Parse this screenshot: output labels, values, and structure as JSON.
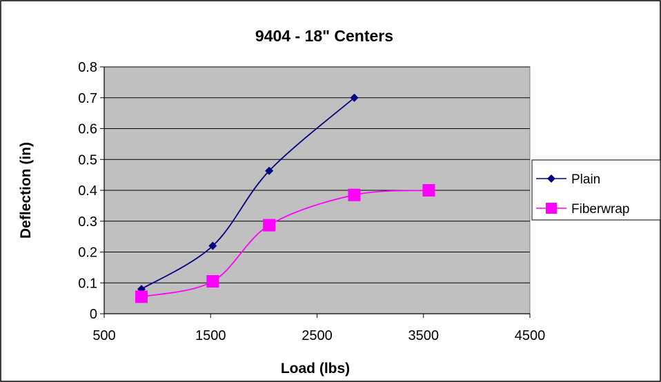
{
  "chart_data": {
    "type": "line",
    "title": "9404 - 18\" Centers",
    "xlabel": "Load (lbs)",
    "ylabel": "Deflection (in)",
    "xlim": [
      500,
      4500
    ],
    "ylim": [
      0,
      0.8
    ],
    "x_ticks": [
      "500",
      "1500",
      "2500",
      "3500",
      "4500"
    ],
    "y_ticks": [
      "0",
      "0.1",
      "0.2",
      "0.3",
      "0.4",
      "0.5",
      "0.6",
      "0.7",
      "0.8"
    ],
    "grid": "horizontal",
    "legend_position": "right",
    "plot_background": "#c0c0c0",
    "series": [
      {
        "name": "Plain",
        "color": "#000080",
        "marker": "diamond",
        "x": [
          850,
          1520,
          2050,
          2850
        ],
        "y": [
          0.08,
          0.22,
          0.463,
          0.7
        ]
      },
      {
        "name": "Fiberwrap",
        "color": "#ff00ff",
        "marker": "square",
        "x": [
          850,
          1520,
          2050,
          2850,
          3550
        ],
        "y": [
          0.055,
          0.105,
          0.287,
          0.385,
          0.4
        ]
      }
    ]
  }
}
